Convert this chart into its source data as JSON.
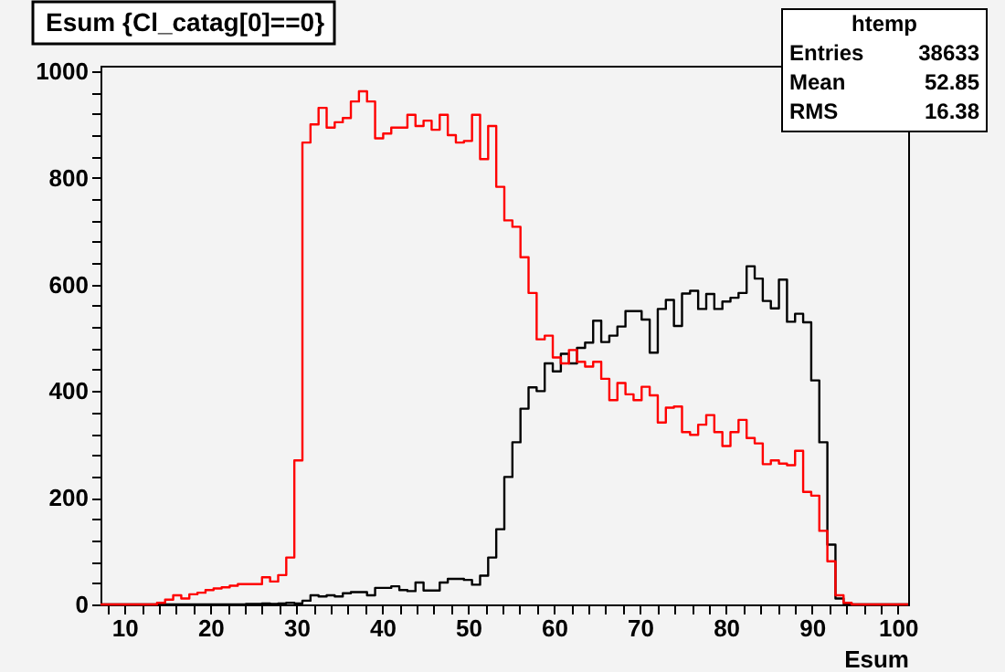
{
  "chart_data": {
    "type": "histogram",
    "title": "Esum {Cl_catag[0]==0}",
    "xlabel": "Esum",
    "annotations": [
      "htemp",
      "Entries 38633",
      "Mean 52.85",
      "RMS 16.38"
    ],
    "bins": [
      7.2,
      8.14,
      9.08,
      10.02,
      10.96,
      11.9,
      12.84,
      13.78,
      14.72,
      15.66,
      16.6,
      17.54,
      18.48,
      19.42,
      20.36,
      21.3,
      22.24,
      23.18,
      24.12,
      25.06,
      26.0,
      26.94,
      27.88,
      28.82,
      29.76,
      30.7,
      31.64,
      32.58,
      33.52,
      34.46,
      35.4,
      36.34,
      37.28,
      38.22,
      39.16,
      40.1,
      41.04,
      41.98,
      42.92,
      43.86,
      44.8,
      45.74,
      46.68,
      47.62,
      48.56,
      49.5,
      50.44,
      51.38,
      52.32,
      53.26,
      54.2,
      55.14,
      56.08,
      57.02,
      57.96,
      58.9,
      59.84,
      60.78,
      61.72,
      62.66,
      63.6,
      64.54,
      65.48,
      66.42,
      67.36,
      68.3,
      69.24,
      70.18,
      71.12,
      72.06,
      73.0,
      73.94,
      74.88,
      75.82,
      76.76,
      77.7,
      78.64,
      79.58,
      80.52,
      81.46,
      82.4,
      83.34,
      84.28,
      85.22,
      86.16,
      87.1,
      88.04,
      88.98,
      89.92,
      90.86,
      91.8,
      92.74,
      93.68,
      94.62,
      95.56,
      96.5,
      97.44,
      98.38,
      99.32,
      100.26,
      101.2
    ],
    "series": [
      {
        "color": "#000000",
        "values": [
          0,
          0,
          0,
          0,
          0,
          0,
          0,
          0,
          0,
          0,
          0,
          0,
          0,
          0,
          0,
          0,
          0,
          0,
          1,
          1,
          2,
          1,
          2,
          3,
          2,
          7,
          17,
          15,
          17,
          15,
          21,
          23,
          23,
          17,
          31,
          31,
          34,
          27,
          25,
          41,
          26,
          26,
          41,
          48,
          48,
          46,
          37,
          54,
          88,
          141,
          239,
          304,
          367,
          407,
          400,
          452,
          437,
          470,
          452,
          481,
          491,
          532,
          492,
          504,
          521,
          550,
          550,
          534,
          472,
          554,
          571,
          522,
          583,
          588,
          554,
          582,
          554,
          568,
          575,
          584,
          634,
          611,
          569,
          555,
          609,
          530,
          545,
          529,
          420,
          304,
          112,
          11,
          2,
          0,
          0,
          0,
          0,
          0,
          0,
          0
        ]
      },
      {
        "color": "#ff0000",
        "values": [
          0,
          0,
          0,
          0,
          0,
          0,
          0,
          3,
          9,
          17,
          11,
          19,
          22,
          27,
          30,
          32,
          35,
          38,
          38,
          38,
          51,
          43,
          55,
          88,
          270,
          866,
          900,
          931,
          894,
          904,
          912,
          943,
          962,
          943,
          874,
          883,
          894,
          894,
          918,
          897,
          907,
          890,
          918,
          880,
          866,
          869,
          918,
          835,
          897,
          783,
          720,
          708,
          651,
          584,
          497,
          504,
          463,
          452,
          477,
          455,
          446,
          455,
          423,
          383,
          415,
          394,
          383,
          408,
          392,
          341,
          369,
          371,
          323,
          318,
          337,
          355,
          323,
          297,
          323,
          346,
          312,
          302,
          263,
          270,
          264,
          261,
          288,
          211,
          204,
          138,
          81,
          17,
          3,
          0,
          0,
          0,
          0,
          0,
          0,
          0
        ]
      }
    ],
    "xlim": [
      7.2,
      101.2
    ],
    "xticks": [
      {
        "value": 8,
        "label": null
      },
      10,
      {
        "value": 12,
        "label": null
      },
      {
        "value": 14,
        "label": null
      },
      {
        "value": 16,
        "label": null
      },
      {
        "value": 18,
        "label": null
      },
      20,
      {
        "value": 22,
        "label": null
      },
      {
        "value": 24,
        "label": null
      },
      {
        "value": 26,
        "label": null
      },
      {
        "value": 28,
        "label": null
      },
      30,
      {
        "value": 32,
        "label": null
      },
      {
        "value": 34,
        "label": null
      },
      {
        "value": 36,
        "label": null
      },
      {
        "value": 38,
        "label": null
      },
      40,
      {
        "value": 42,
        "label": null
      },
      {
        "value": 44,
        "label": null
      },
      {
        "value": 46,
        "label": null
      },
      {
        "value": 48,
        "label": null
      },
      50,
      {
        "value": 52,
        "label": null
      },
      {
        "value": 54,
        "label": null
      },
      {
        "value": 56,
        "label": null
      },
      {
        "value": 58,
        "label": null
      },
      60,
      {
        "value": 62,
        "label": null
      },
      {
        "value": 64,
        "label": null
      },
      {
        "value": 66,
        "label": null
      },
      {
        "value": 68,
        "label": null
      },
      70,
      {
        "value": 72,
        "label": null
      },
      {
        "value": 74,
        "label": null
      },
      {
        "value": 76,
        "label": null
      },
      {
        "value": 78,
        "label": null
      },
      80,
      {
        "value": 82,
        "label": null
      },
      {
        "value": 84,
        "label": null
      },
      {
        "value": 86,
        "label": null
      },
      {
        "value": 88,
        "label": null
      },
      90,
      {
        "value": 92,
        "label": null
      },
      {
        "value": 94,
        "label": null
      },
      {
        "value": 96,
        "label": null
      },
      {
        "value": 98,
        "label": null
      },
      100
    ],
    "ylim": [
      0,
      1010
    ],
    "yticks": [
      0,
      {
        "value": 40,
        "label": null
      },
      {
        "value": 80,
        "label": null
      },
      {
        "value": 120,
        "label": null
      },
      {
        "value": 160,
        "label": null
      },
      200,
      {
        "value": 240,
        "label": null
      },
      {
        "value": 280,
        "label": null
      },
      {
        "value": 320,
        "label": null
      },
      {
        "value": 360,
        "label": null
      },
      400,
      {
        "value": 440,
        "label": null
      },
      {
        "value": 480,
        "label": null
      },
      {
        "value": 520,
        "label": null
      },
      {
        "value": 560,
        "label": null
      },
      600,
      {
        "value": 640,
        "label": null
      },
      {
        "value": 680,
        "label": null
      },
      {
        "value": 720,
        "label": null
      },
      {
        "value": 760,
        "label": null
      },
      800,
      {
        "value": 840,
        "label": null
      },
      {
        "value": 880,
        "label": null
      },
      {
        "value": 920,
        "label": null
      },
      {
        "value": 960,
        "label": null
      },
      1000
    ],
    "grid": false,
    "legend": false
  }
}
